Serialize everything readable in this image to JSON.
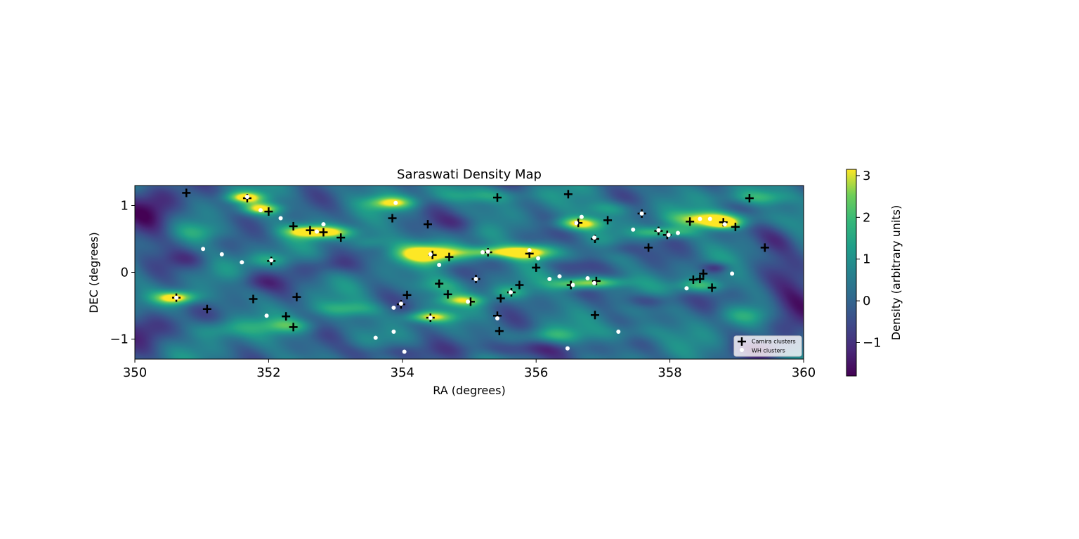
{
  "chart_data": {
    "type": "heatmap",
    "title": "Saraswati Density Map",
    "xlabel": "RA (degrees)",
    "ylabel": "DEC (degrees)",
    "xlim": [
      350,
      360
    ],
    "ylim": [
      -1.3,
      1.3
    ],
    "xticks": [
      350,
      352,
      354,
      356,
      358,
      360
    ],
    "xtick_labels": [
      "350",
      "352",
      "354",
      "356",
      "358",
      "360"
    ],
    "yticks": [
      -1,
      0,
      1
    ],
    "ytick_labels": [
      "−1",
      "0",
      "1"
    ],
    "grid": false,
    "legend_position": "lower-right",
    "colormap": "viridis",
    "colorbar": {
      "label": "Density (arbitrary units)",
      "range": [
        -1.8,
        3.15
      ],
      "ticks": [
        -1,
        0,
        1,
        2,
        3
      ],
      "tick_labels": [
        "−1",
        "0",
        "1",
        "2",
        "3"
      ]
    },
    "density_background": 0.3,
    "density_peaks": [
      [
        350.62,
        -0.38,
        3.4,
        0.22,
        0.07
      ],
      [
        351.65,
        1.12,
        2.8,
        0.2,
        0.06
      ],
      [
        351.9,
        0.95,
        2.8,
        0.2,
        0.06
      ],
      [
        352.85,
        0.6,
        3.2,
        0.32,
        0.07
      ],
      [
        354.45,
        0.28,
        3.6,
        0.38,
        0.1
      ],
      [
        355.9,
        0.3,
        3.6,
        0.28,
        0.08
      ],
      [
        356.65,
        0.73,
        3.1,
        0.25,
        0.07
      ],
      [
        358.65,
        0.8,
        3.3,
        0.38,
        0.08
      ],
      [
        358.8,
        0.72,
        2.5,
        0.2,
        0.06
      ],
      [
        353.85,
        1.04,
        2.6,
        0.25,
        0.07
      ],
      [
        354.4,
        -0.67,
        2.6,
        0.25,
        0.06
      ],
      [
        355.3,
        0.3,
        2.3,
        0.28,
        0.06
      ],
      [
        356.9,
        -0.15,
        2.3,
        0.32,
        0.06
      ],
      [
        356.55,
        -0.18,
        1.6,
        0.25,
        0.06
      ],
      [
        354.9,
        -0.42,
        2.0,
        0.25,
        0.06
      ],
      [
        357.9,
        0.6,
        2.1,
        0.3,
        0.06
      ],
      [
        358.45,
        -0.2,
        1.9,
        0.25,
        0.07
      ],
      [
        359.35,
        1.12,
        1.5,
        0.35,
        0.08
      ],
      [
        355.2,
        1.15,
        1.3,
        0.5,
        0.08
      ],
      [
        352.3,
        -0.8,
        1.6,
        0.3,
        0.08
      ],
      [
        353.2,
        -0.55,
        1.4,
        0.35,
        0.08
      ],
      [
        351.3,
        -0.85,
        1.3,
        0.3,
        0.1
      ],
      [
        352.0,
        0.18,
        1.2,
        0.25,
        0.08
      ],
      [
        353.5,
        0.45,
        1.3,
        0.2,
        0.08
      ],
      [
        354.5,
        -0.2,
        1.2,
        0.3,
        0.1
      ],
      [
        356.2,
        -0.95,
        1.2,
        0.3,
        0.08
      ],
      [
        357.4,
        -0.9,
        1.0,
        0.35,
        0.1
      ],
      [
        357.1,
        0.95,
        1.2,
        0.3,
        0.08
      ],
      [
        351.0,
        0.6,
        1.0,
        0.3,
        0.1
      ],
      [
        359.1,
        -0.65,
        1.1,
        0.3,
        0.1
      ],
      [
        355.6,
        -0.3,
        1.3,
        0.2,
        0.07
      ],
      [
        352.5,
        0.62,
        1.3,
        0.2,
        0.06
      ],
      [
        350.3,
        0.9,
        -1.8,
        0.3,
        0.3
      ],
      [
        350.2,
        -0.8,
        -1.5,
        0.3,
        0.2
      ],
      [
        359.8,
        -0.5,
        -1.8,
        0.3,
        0.3
      ],
      [
        359.6,
        0.5,
        -1.3,
        0.25,
        0.15
      ],
      [
        358.7,
        0.07,
        -1.6,
        0.15,
        0.06
      ],
      [
        357.7,
        -0.42,
        -1.2,
        0.3,
        0.08
      ],
      [
        355.8,
        -1.15,
        -1.3,
        0.6,
        0.1
      ],
      [
        353.7,
        -1.2,
        -1.1,
        0.4,
        0.1
      ],
      [
        351.8,
        -0.15,
        -1.0,
        0.3,
        0.1
      ],
      [
        357.2,
        0.35,
        -1.0,
        0.25,
        0.08
      ],
      [
        354.9,
        0.75,
        -0.9,
        0.3,
        0.1
      ],
      [
        352.9,
        0.1,
        -0.9,
        0.3,
        0.1
      ],
      [
        356.6,
        0.1,
        -0.8,
        0.3,
        0.08
      ],
      [
        350.8,
        0.2,
        -0.8,
        0.25,
        0.1
      ],
      [
        359.4,
        -1.15,
        -1.2,
        0.3,
        0.1
      ]
    ],
    "series": [
      {
        "name": "Camira clusters",
        "marker": "plus",
        "color": "#000000",
        "points": [
          [
            350.77,
            1.19
          ],
          [
            351.68,
            1.11
          ],
          [
            352.0,
            0.91
          ],
          [
            352.37,
            0.69
          ],
          [
            352.62,
            0.63
          ],
          [
            352.82,
            0.6
          ],
          [
            353.08,
            0.52
          ],
          [
            353.85,
            0.81
          ],
          [
            354.38,
            0.72
          ],
          [
            354.45,
            0.26
          ],
          [
            354.7,
            0.23
          ],
          [
            355.42,
            1.12
          ],
          [
            355.28,
            0.3
          ],
          [
            356.48,
            1.17
          ],
          [
            355.9,
            0.28
          ],
          [
            356.0,
            0.07
          ],
          [
            356.63,
            0.74
          ],
          [
            357.07,
            0.78
          ],
          [
            356.88,
            0.5
          ],
          [
            357.58,
            0.88
          ],
          [
            357.68,
            0.37
          ],
          [
            357.83,
            0.62
          ],
          [
            357.96,
            0.56
          ],
          [
            358.3,
            0.76
          ],
          [
            358.8,
            0.75
          ],
          [
            358.98,
            0.68
          ],
          [
            359.19,
            1.11
          ],
          [
            359.42,
            0.37
          ],
          [
            352.04,
            0.17
          ],
          [
            350.62,
            -0.38
          ],
          [
            351.08,
            -0.55
          ],
          [
            351.77,
            -0.4
          ],
          [
            352.26,
            -0.66
          ],
          [
            352.42,
            -0.37
          ],
          [
            352.37,
            -0.82
          ],
          [
            354.07,
            -0.34
          ],
          [
            353.98,
            -0.48
          ],
          [
            354.55,
            -0.17
          ],
          [
            354.68,
            -0.33
          ],
          [
            355.1,
            -0.1
          ],
          [
            355.02,
            -0.44
          ],
          [
            354.42,
            -0.68
          ],
          [
            355.42,
            -0.65
          ],
          [
            355.45,
            -0.88
          ],
          [
            355.47,
            -0.39
          ],
          [
            355.63,
            -0.3
          ],
          [
            355.75,
            -0.19
          ],
          [
            356.52,
            -0.19
          ],
          [
            356.9,
            -0.13
          ],
          [
            356.88,
            -0.64
          ],
          [
            358.35,
            -0.11
          ],
          [
            358.45,
            -0.1
          ],
          [
            358.5,
            -0.02
          ],
          [
            358.63,
            -0.23
          ]
        ]
      },
      {
        "name": "WH clusters",
        "marker": "circle",
        "color": "#ffffff",
        "points": [
          [
            351.68,
            1.13
          ],
          [
            351.88,
            0.93
          ],
          [
            352.18,
            0.81
          ],
          [
            352.72,
            0.61
          ],
          [
            352.82,
            0.72
          ],
          [
            353.9,
            1.04
          ],
          [
            351.02,
            0.35
          ],
          [
            351.3,
            0.27
          ],
          [
            351.6,
            0.15
          ],
          [
            352.04,
            0.18
          ],
          [
            350.62,
            -0.38
          ],
          [
            351.97,
            -0.65
          ],
          [
            353.6,
            -0.98
          ],
          [
            353.87,
            -0.89
          ],
          [
            354.03,
            -1.19
          ],
          [
            353.87,
            -0.53
          ],
          [
            353.98,
            -0.47
          ],
          [
            354.42,
            -0.68
          ],
          [
            354.55,
            0.11
          ],
          [
            354.42,
            0.27
          ],
          [
            355.1,
            -0.1
          ],
          [
            354.98,
            -0.44
          ],
          [
            355.42,
            -0.69
          ],
          [
            355.62,
            -0.3
          ],
          [
            355.2,
            0.3
          ],
          [
            355.28,
            0.31
          ],
          [
            355.9,
            0.33
          ],
          [
            356.03,
            0.21
          ],
          [
            356.2,
            -0.1
          ],
          [
            356.35,
            -0.06
          ],
          [
            356.47,
            -1.14
          ],
          [
            356.55,
            -0.19
          ],
          [
            356.6,
            0.74
          ],
          [
            356.68,
            0.83
          ],
          [
            356.77,
            -0.09
          ],
          [
            356.87,
            0.52
          ],
          [
            356.87,
            -0.16
          ],
          [
            357.23,
            -0.89
          ],
          [
            357.45,
            0.64
          ],
          [
            357.58,
            0.88
          ],
          [
            357.83,
            0.63
          ],
          [
            357.98,
            0.56
          ],
          [
            358.12,
            0.59
          ],
          [
            358.25,
            -0.24
          ],
          [
            358.45,
            0.8
          ],
          [
            358.6,
            0.8
          ],
          [
            358.82,
            0.72
          ],
          [
            358.93,
            -0.02
          ]
        ]
      }
    ]
  }
}
